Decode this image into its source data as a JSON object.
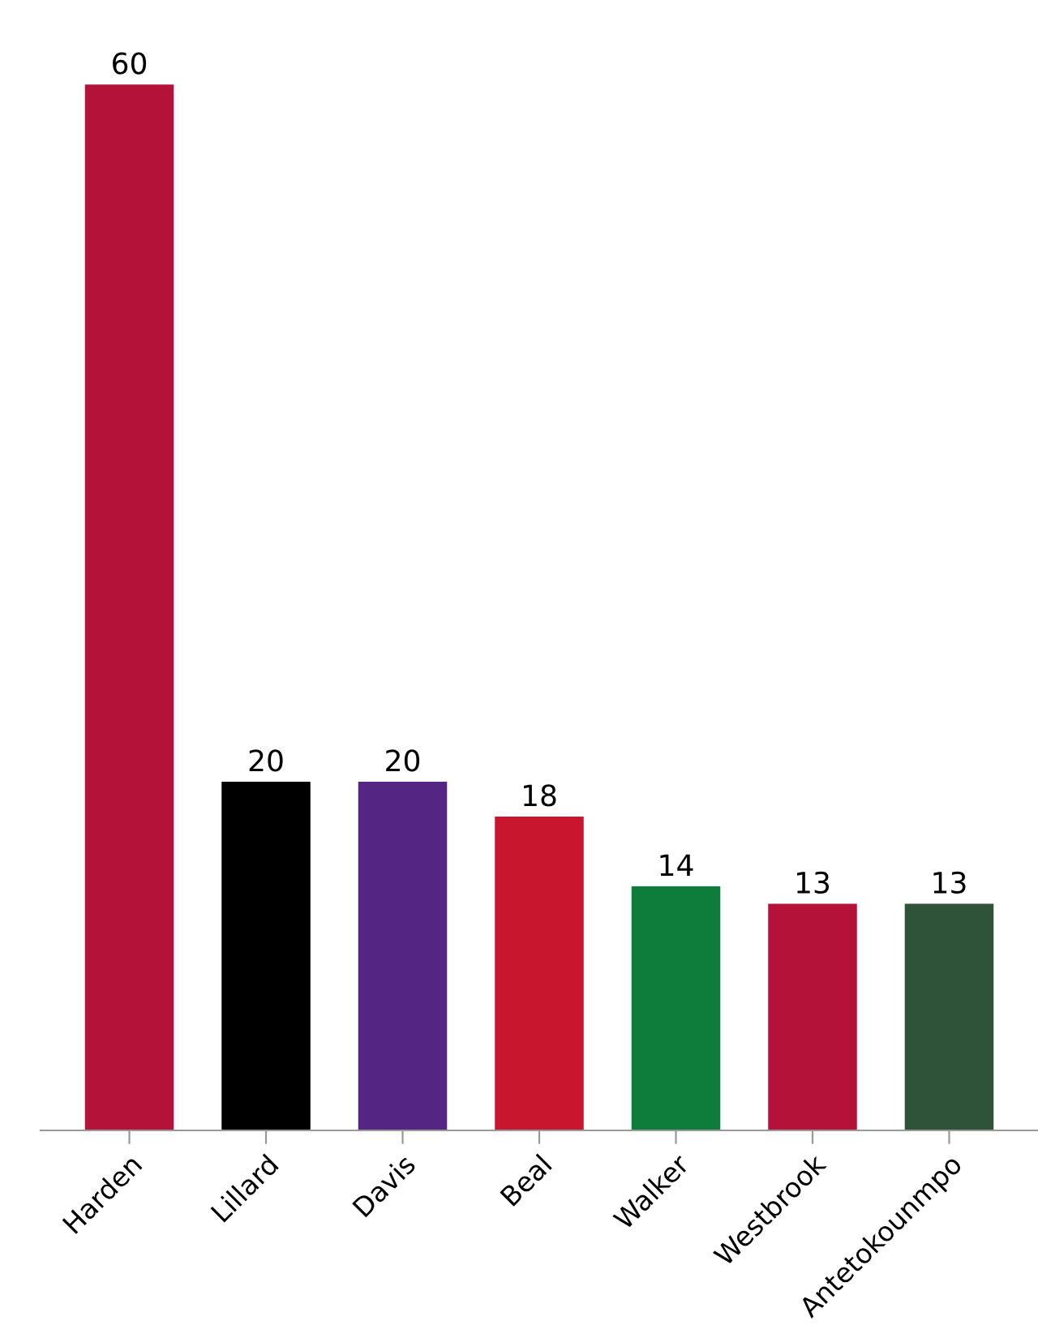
{
  "chart_data": {
    "type": "bar",
    "categories": [
      "Harden",
      "Lillard",
      "Davis",
      "Beal",
      "Walker",
      "Westbrook",
      "Antetokounmpo"
    ],
    "values": [
      60,
      20,
      20,
      18,
      14,
      13,
      13
    ],
    "colors": [
      "#b5123a",
      "#000000",
      "#552583",
      "#c8162f",
      "#0e7c3a",
      "#b5123a",
      "#2f5338"
    ],
    "data_labels": true,
    "grid": false,
    "legend": false,
    "tick_labels": "x"
  }
}
